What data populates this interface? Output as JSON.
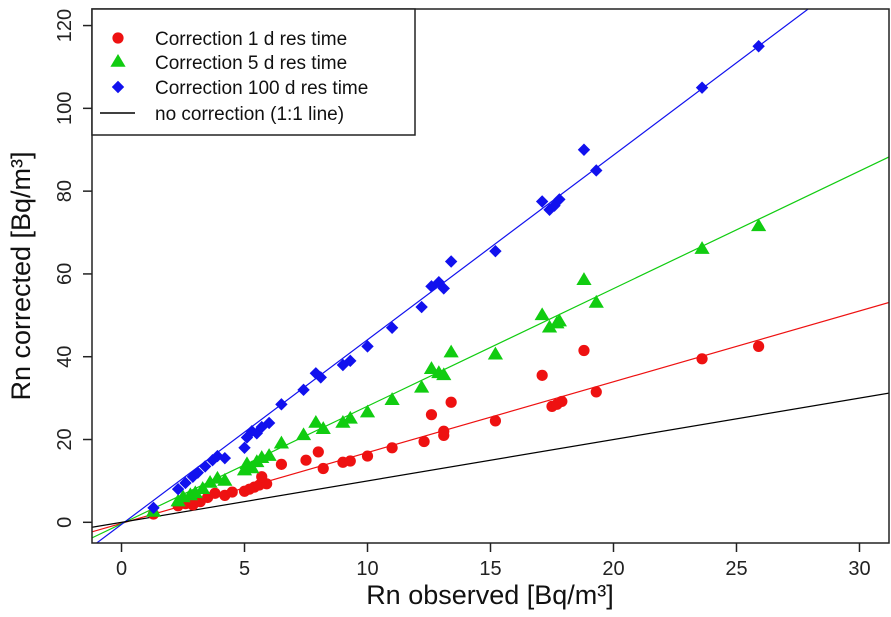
{
  "chart_data": {
    "type": "scatter",
    "xlabel": "Rn observed [Bq/m³]",
    "ylabel": "Rn  corrected [Bq/m³]",
    "xlim": [
      -1.2,
      31.2
    ],
    "ylim": [
      -5,
      124
    ],
    "x_ticks": [
      0,
      5,
      10,
      15,
      20,
      25,
      30
    ],
    "y_ticks": [
      0,
      20,
      40,
      60,
      80,
      100,
      120
    ],
    "grid": false,
    "legend_position": "top-left",
    "series": [
      {
        "name": "Correction 1 d res time",
        "marker": "circle",
        "color": "#ee1111",
        "fit": {
          "slope": 1.71,
          "intercept": -0.25
        },
        "points": [
          [
            1.3,
            2.0
          ],
          [
            2.3,
            4.0
          ],
          [
            2.6,
            4.5
          ],
          [
            2.9,
            4.2
          ],
          [
            3.2,
            5.0
          ],
          [
            3.5,
            6.0
          ],
          [
            3.8,
            7.0
          ],
          [
            4.2,
            6.5
          ],
          [
            4.5,
            7.3
          ],
          [
            5.0,
            7.5
          ],
          [
            5.2,
            8.0
          ],
          [
            5.4,
            8.5
          ],
          [
            5.6,
            9.0
          ],
          [
            5.9,
            9.3
          ],
          [
            5.7,
            11.0
          ],
          [
            6.5,
            14.0
          ],
          [
            7.5,
            15.0
          ],
          [
            8.0,
            17.0
          ],
          [
            8.2,
            13.0
          ],
          [
            9.0,
            14.5
          ],
          [
            9.3,
            14.8
          ],
          [
            10.0,
            16.0
          ],
          [
            11.0,
            18.0
          ],
          [
            12.3,
            19.5
          ],
          [
            12.6,
            26.0
          ],
          [
            13.1,
            21.0
          ],
          [
            13.1,
            22.0
          ],
          [
            13.4,
            29.0
          ],
          [
            15.2,
            24.5
          ],
          [
            17.1,
            35.5
          ],
          [
            17.5,
            28.0
          ],
          [
            17.7,
            28.5
          ],
          [
            17.9,
            29.2
          ],
          [
            18.8,
            41.5
          ],
          [
            19.3,
            31.5
          ],
          [
            23.6,
            39.5
          ],
          [
            25.9,
            42.5
          ]
        ]
      },
      {
        "name": "Correction 5 d res time",
        "marker": "triangle",
        "color": "#11cc11",
        "fit": {
          "slope": 2.84,
          "intercept": -0.35
        },
        "points": [
          [
            1.3,
            2.5
          ],
          [
            2.3,
            5.0
          ],
          [
            2.5,
            6.0
          ],
          [
            2.8,
            6.5
          ],
          [
            3.0,
            7.0
          ],
          [
            3.3,
            8.0
          ],
          [
            3.6,
            9.5
          ],
          [
            3.9,
            10.5
          ],
          [
            4.2,
            10.0
          ],
          [
            5.0,
            12.5
          ],
          [
            5.1,
            14.0
          ],
          [
            5.3,
            13.0
          ],
          [
            5.5,
            14.5
          ],
          [
            5.7,
            15.5
          ],
          [
            6.0,
            16.0
          ],
          [
            6.5,
            19.0
          ],
          [
            7.4,
            21.0
          ],
          [
            7.9,
            24.0
          ],
          [
            8.2,
            22.5
          ],
          [
            9.0,
            24.0
          ],
          [
            9.3,
            25.0
          ],
          [
            10.0,
            26.5
          ],
          [
            11.0,
            29.5
          ],
          [
            12.2,
            32.5
          ],
          [
            12.6,
            37.0
          ],
          [
            12.9,
            36.0
          ],
          [
            13.1,
            35.5
          ],
          [
            13.4,
            41.0
          ],
          [
            15.2,
            40.5
          ],
          [
            17.1,
            50.0
          ],
          [
            17.4,
            47.0
          ],
          [
            17.7,
            48.0
          ],
          [
            17.8,
            48.5
          ],
          [
            18.8,
            58.5
          ],
          [
            19.3,
            53.0
          ],
          [
            23.6,
            66.0
          ],
          [
            25.9,
            71.5
          ]
        ]
      },
      {
        "name": "Correction 100 d res time",
        "marker": "diamond",
        "color": "#1111ee",
        "fit": {
          "slope": 4.46,
          "intercept": -0.5
        },
        "points": [
          [
            1.3,
            3.5
          ],
          [
            2.3,
            8.0
          ],
          [
            2.6,
            9.5
          ],
          [
            2.9,
            11.0
          ],
          [
            3.1,
            12.0
          ],
          [
            3.4,
            13.5
          ],
          [
            3.7,
            15.0
          ],
          [
            3.9,
            16.0
          ],
          [
            4.2,
            15.5
          ],
          [
            5.0,
            18.0
          ],
          [
            5.1,
            20.5
          ],
          [
            5.3,
            22.0
          ],
          [
            5.5,
            21.5
          ],
          [
            5.7,
            23.0
          ],
          [
            6.0,
            24.0
          ],
          [
            6.5,
            28.5
          ],
          [
            7.4,
            32.0
          ],
          [
            7.9,
            36.0
          ],
          [
            8.1,
            35.0
          ],
          [
            9.0,
            38.0
          ],
          [
            9.3,
            39.0
          ],
          [
            10.0,
            42.5
          ],
          [
            11.0,
            47.0
          ],
          [
            12.2,
            52.0
          ],
          [
            12.6,
            57.0
          ],
          [
            12.9,
            58.0
          ],
          [
            13.1,
            56.5
          ],
          [
            13.4,
            63.0
          ],
          [
            15.2,
            65.5
          ],
          [
            17.1,
            77.5
          ],
          [
            17.4,
            75.5
          ],
          [
            17.6,
            76.5
          ],
          [
            17.8,
            78.0
          ],
          [
            18.8,
            90.0
          ],
          [
            19.3,
            85.0
          ],
          [
            23.6,
            105.0
          ],
          [
            25.9,
            115.0
          ]
        ]
      },
      {
        "name": "no correction (1:1 line)",
        "marker": "line",
        "color": "#000000",
        "fit": {
          "slope": 1.0,
          "intercept": 0.0
        }
      }
    ]
  }
}
